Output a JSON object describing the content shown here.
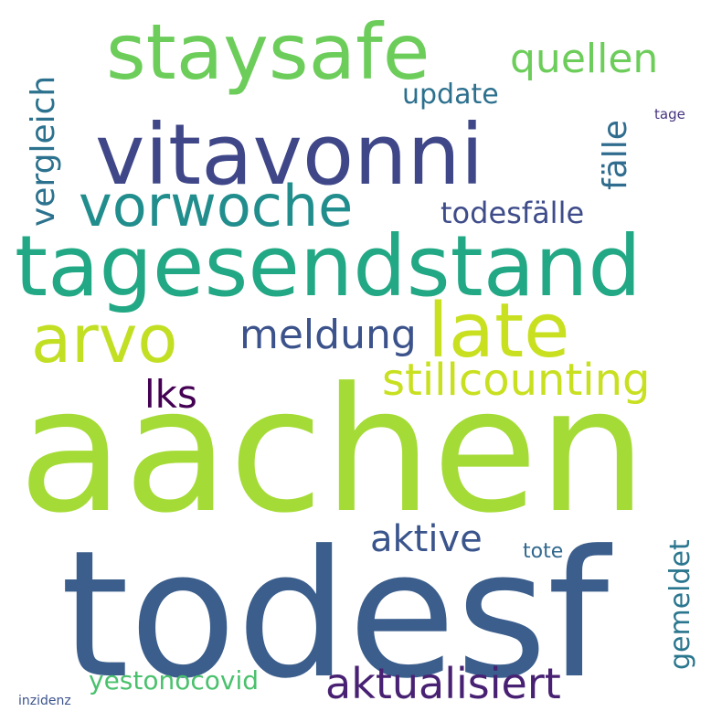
{
  "words": [
    {
      "id": "aachen",
      "text": "aachen",
      "color": "#a5db36"
    },
    {
      "id": "todesf",
      "text": "todesf",
      "color": "#3b5e8c"
    },
    {
      "id": "tagesendstand",
      "text": "tagesendstand",
      "color": "#22a884"
    },
    {
      "id": "vitavonni",
      "text": "vitavonni",
      "color": "#3f4788"
    },
    {
      "id": "staysafe",
      "text": "staysafe",
      "color": "#6ccd5a"
    },
    {
      "id": "vorwoche",
      "text": "vorwoche",
      "color": "#218e8d"
    },
    {
      "id": "late",
      "text": "late",
      "color": "#c8e020"
    },
    {
      "id": "arvo",
      "text": "arvo",
      "color": "#c2df23"
    },
    {
      "id": "stillcounting",
      "text": "stillcounting",
      "color": "#c8e020"
    },
    {
      "id": "aktualisiert",
      "text": "aktualisiert",
      "color": "#482173"
    },
    {
      "id": "meldung",
      "text": "meldung",
      "color": "#3b528b"
    },
    {
      "id": "quellen",
      "text": "quellen",
      "color": "#6ccd5a"
    },
    {
      "id": "vergleich",
      "text": "vergleich",
      "color": "#2c728e"
    },
    {
      "id": "faelle",
      "text": "fälle",
      "color": "#2f6c8e"
    },
    {
      "id": "todesfaelle",
      "text": "todesfälle",
      "color": "#3e4c8a"
    },
    {
      "id": "aktive",
      "text": "aktive",
      "color": "#3a548c"
    },
    {
      "id": "gemeldet",
      "text": "gemeldet",
      "color": "#2a768e"
    },
    {
      "id": "lks",
      "text": "lks",
      "color": "#440154"
    },
    {
      "id": "update",
      "text": "update",
      "color": "#2d708e"
    },
    {
      "id": "yestonocovid",
      "text": "yestonocovid",
      "color": "#4ac16d"
    },
    {
      "id": "tote",
      "text": "tote",
      "color": "#31688e"
    },
    {
      "id": "tage",
      "text": "tage",
      "color": "#46337e"
    },
    {
      "id": "inzidenz",
      "text": "inzidenz",
      "color": "#3b528b"
    }
  ]
}
